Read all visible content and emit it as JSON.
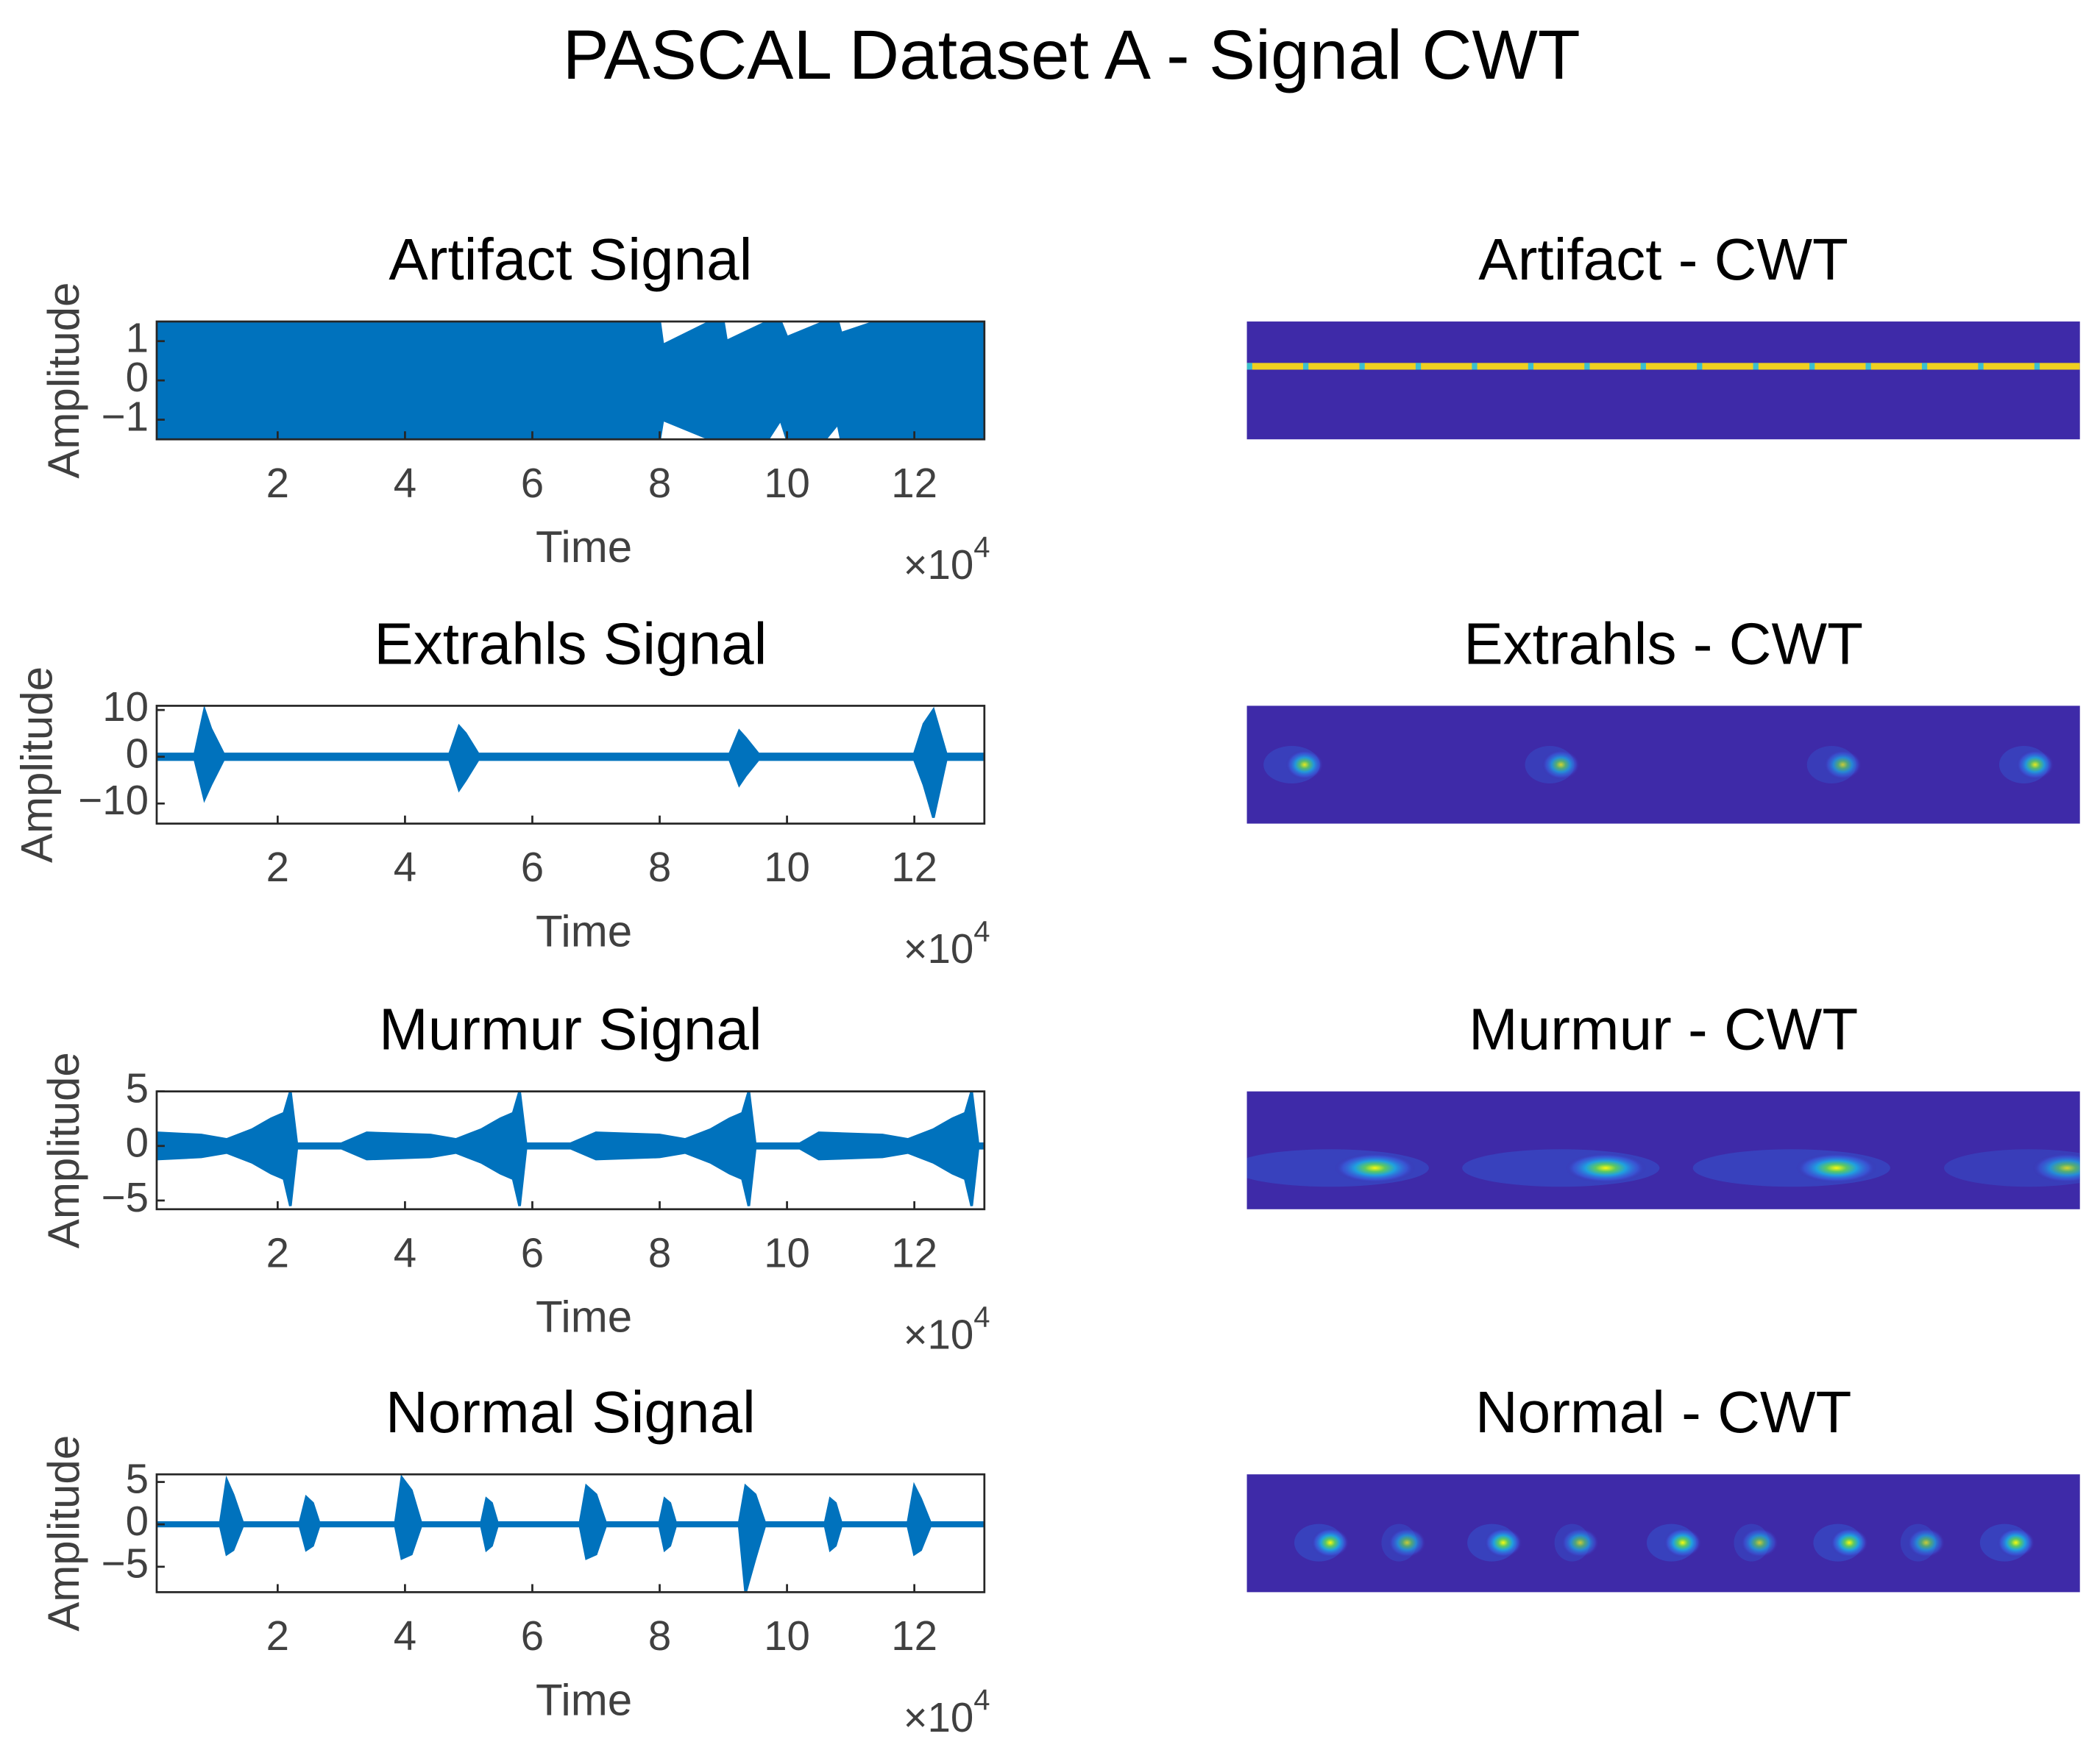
{
  "title": "PASCAL Dataset A - Signal CWT",
  "chart_data": [
    {
      "type": "band",
      "title": "Artifact Signal",
      "xlabel": "Time",
      "ylabel": "Amplitude",
      "x_multiplier": "×10",
      "x_multiplier_exponent": "4",
      "color": "#0072bd",
      "xlim": [
        0.1,
        13.1
      ],
      "ylim": [
        -1.5,
        1.5
      ],
      "xticks": [
        2,
        4,
        6,
        8,
        10,
        12
      ],
      "yticks": [
        1,
        0,
        {
          "value": -1,
          "label": "−1"
        }
      ],
      "x": [
        0.1,
        8.0,
        8.05,
        8.8,
        9.0,
        9.05,
        9.7,
        9.9,
        10.0,
        10.6,
        10.8,
        10.85,
        11.4,
        13.1
      ],
      "upper": [
        1.5,
        1.5,
        0.9,
        1.5,
        1.5,
        1.0,
        1.5,
        1.5,
        1.1,
        1.5,
        1.5,
        1.2,
        1.5,
        1.5
      ],
      "lower": [
        -1.5,
        -1.5,
        -1.0,
        -1.5,
        -1.5,
        -1.5,
        -1.5,
        -1.0,
        -1.5,
        -1.5,
        -1.1,
        -1.5,
        -1.5,
        -1.5
      ]
    },
    {
      "type": "heatmap",
      "title": "Artifact - CWT",
      "color": "#3e2aa8",
      "xlim": [
        0.1,
        13.1
      ],
      "ylim": [
        0,
        1
      ],
      "ridge_y": 0.62,
      "spots": []
    },
    {
      "type": "band",
      "title": "Extrahls Signal",
      "xlabel": "Time",
      "ylabel": "Amplitude",
      "x_multiplier": "×10",
      "x_multiplier_exponent": "4",
      "color": "#0072bd",
      "xlim": [
        0.1,
        13.1
      ],
      "ylim": [
        -14.3,
        10.9
      ],
      "xticks": [
        2,
        4,
        6,
        8,
        10,
        12
      ],
      "yticks": [
        10,
        0,
        {
          "value": -10,
          "label": "−10"
        }
      ],
      "x": [
        0.1,
        0.7,
        0.85,
        0.95,
        1.15,
        4.7,
        4.85,
        4.95,
        5.15,
        9.1,
        9.25,
        9.35,
        9.55,
        12.0,
        12.15,
        12.3,
        12.5,
        13.1
      ],
      "upper": [
        0.6,
        0.6,
        10,
        6,
        0.6,
        0.6,
        6.5,
        5,
        0.6,
        0.6,
        5.5,
        4,
        0.6,
        0.6,
        7,
        10,
        0.6,
        0.6
      ],
      "lower": [
        -0.6,
        -0.6,
        -9,
        -6,
        -0.6,
        -0.6,
        -7,
        -5,
        -0.6,
        -0.6,
        -6,
        -4,
        -0.6,
        -0.6,
        -6,
        -13,
        -0.6,
        -0.6
      ]
    },
    {
      "type": "heatmap",
      "title": "Extrahls - CWT",
      "color": "#3e2aa8",
      "xlim": [
        0.1,
        13.1
      ],
      "ylim": [
        0,
        1
      ],
      "spots": [
        {
          "x": 1.0,
          "y": 0.5,
          "spread": 0.4,
          "intensity": 0.9
        },
        {
          "x": 5.0,
          "y": 0.5,
          "spread": 0.35,
          "intensity": 0.8
        },
        {
          "x": 9.4,
          "y": 0.5,
          "spread": 0.35,
          "intensity": 0.75
        },
        {
          "x": 12.4,
          "y": 0.5,
          "spread": 0.35,
          "intensity": 0.9
        }
      ]
    },
    {
      "type": "band",
      "title": "Murmur Signal",
      "xlabel": "Time",
      "ylabel": "Amplitude",
      "x_multiplier": "×10",
      "x_multiplier_exponent": "4",
      "color": "#0072bd",
      "xlim": [
        0.1,
        13.1
      ],
      "ylim": [
        -5.8,
        5
      ],
      "xticks": [
        2,
        4,
        6,
        8,
        10,
        12
      ],
      "yticks": [
        5,
        0,
        {
          "value": -5,
          "label": "−5"
        }
      ],
      "x": [
        0.1,
        0.8,
        1.2,
        1.6,
        1.9,
        2.1,
        2.2,
        2.3,
        3.0,
        3.4,
        4.4,
        4.8,
        5.2,
        5.5,
        5.7,
        5.8,
        5.9,
        6.6,
        7.0,
        8.0,
        8.4,
        8.8,
        9.1,
        9.3,
        9.4,
        9.5,
        10.2,
        10.5,
        11.5,
        11.9,
        12.3,
        12.6,
        12.8,
        12.9,
        13.0,
        13.1
      ],
      "upper": [
        1.2,
        1.0,
        0.6,
        1.5,
        2.5,
        3,
        5,
        0.2,
        0.2,
        1.2,
        1.0,
        0.6,
        1.5,
        2.5,
        3,
        5,
        0.2,
        0.2,
        1.2,
        1.0,
        0.6,
        1.5,
        2.5,
        3,
        5,
        0.2,
        0.2,
        1.2,
        1.0,
        0.6,
        1.5,
        2.5,
        3,
        5,
        0.2,
        0.2
      ],
      "lower": [
        -1.2,
        -1.0,
        -0.6,
        -1.5,
        -2.5,
        -3,
        -5.5,
        -0.2,
        -0.2,
        -1.2,
        -1.0,
        -0.6,
        -1.5,
        -2.5,
        -3,
        -5.5,
        -0.2,
        -0.2,
        -1.2,
        -1.0,
        -0.6,
        -1.5,
        -2.5,
        -3,
        -5.5,
        -0.2,
        -0.2,
        -1.2,
        -1.0,
        -0.6,
        -1.5,
        -2.5,
        -3,
        -5.5,
        -0.2,
        -0.2
      ]
    },
    {
      "type": "heatmap",
      "title": "Murmur - CWT",
      "color": "#3e2aa8",
      "xlim": [
        0.1,
        13.1
      ],
      "ylim": [
        0,
        1
      ],
      "spots": [
        {
          "x": 2.1,
          "y": 0.35,
          "spread": 1.4,
          "intensity": 1
        },
        {
          "x": 5.7,
          "y": 0.35,
          "spread": 1.4,
          "intensity": 1
        },
        {
          "x": 9.3,
          "y": 0.35,
          "spread": 1.4,
          "intensity": 1
        },
        {
          "x": 12.9,
          "y": 0.35,
          "spread": 1.2,
          "intensity": 0.8
        }
      ]
    },
    {
      "type": "band",
      "title": "Normal Signal",
      "xlabel": "Time",
      "ylabel": "Amplitude",
      "x_multiplier": "×10",
      "x_multiplier_exponent": "4",
      "color": "#0072bd",
      "xlim": [
        0.1,
        13.1
      ],
      "ylim": [
        -8,
        5.9
      ],
      "xticks": [
        2,
        4,
        6,
        8,
        10,
        12
      ],
      "yticks": [
        5,
        0,
        {
          "value": -5,
          "label": "−5"
        }
      ],
      "x": [
        0.1,
        1.1,
        1.2,
        1.3,
        1.45,
        2.35,
        2.45,
        2.55,
        2.65,
        3.85,
        3.95,
        4.1,
        4.25,
        5.2,
        5.28,
        5.36,
        5.45,
        6.75,
        6.85,
        7.0,
        7.15,
        8.0,
        8.08,
        8.16,
        8.25,
        9.25,
        9.35,
        9.5,
        9.65,
        10.6,
        10.68,
        10.76,
        10.85,
        11.9,
        12.0,
        12.1,
        12.25,
        13.1
      ],
      "upper": [
        0.2,
        0.2,
        5.2,
        3.5,
        0.2,
        0.2,
        3.2,
        2.5,
        0.2,
        0.2,
        5.5,
        4,
        0.2,
        0.2,
        3,
        2.5,
        0.2,
        0.2,
        4.5,
        3.5,
        0.2,
        0.2,
        3,
        2.5,
        0.2,
        0.2,
        4.5,
        3.5,
        0.2,
        0.2,
        3,
        2.5,
        0.2,
        0.2,
        4.5,
        3,
        0.2,
        0.2
      ],
      "lower": [
        -0.2,
        -0.2,
        -3.5,
        -3,
        -0.2,
        -0.2,
        -3,
        -2.5,
        -0.2,
        -0.2,
        -4,
        -3.5,
        -0.2,
        -0.2,
        -3,
        -2.5,
        -0.2,
        -0.2,
        -4,
        -3.5,
        -0.2,
        -0.2,
        -3,
        -2.5,
        -0.2,
        -0.2,
        -8,
        -4,
        -0.2,
        -0.2,
        -3,
        -2.5,
        -0.2,
        -0.2,
        -3.5,
        -3,
        -0.2,
        -0.2
      ]
    },
    {
      "type": "heatmap",
      "title": "Normal - CWT",
      "color": "#3e2aa8",
      "xlim": [
        0.1,
        13.1
      ],
      "ylim": [
        0,
        1
      ],
      "spots": [
        {
          "x": 1.4,
          "y": 0.42,
          "spread": 0.35,
          "intensity": 1
        },
        {
          "x": 2.6,
          "y": 0.42,
          "spread": 0.25,
          "intensity": 0.75
        },
        {
          "x": 4.1,
          "y": 0.42,
          "spread": 0.35,
          "intensity": 1
        },
        {
          "x": 5.3,
          "y": 0.42,
          "spread": 0.25,
          "intensity": 0.75
        },
        {
          "x": 6.9,
          "y": 0.42,
          "spread": 0.35,
          "intensity": 1
        },
        {
          "x": 8.1,
          "y": 0.42,
          "spread": 0.25,
          "intensity": 0.75
        },
        {
          "x": 9.5,
          "y": 0.42,
          "spread": 0.35,
          "intensity": 1
        },
        {
          "x": 10.7,
          "y": 0.42,
          "spread": 0.25,
          "intensity": 0.75
        },
        {
          "x": 12.1,
          "y": 0.42,
          "spread": 0.35,
          "intensity": 1
        }
      ]
    }
  ]
}
